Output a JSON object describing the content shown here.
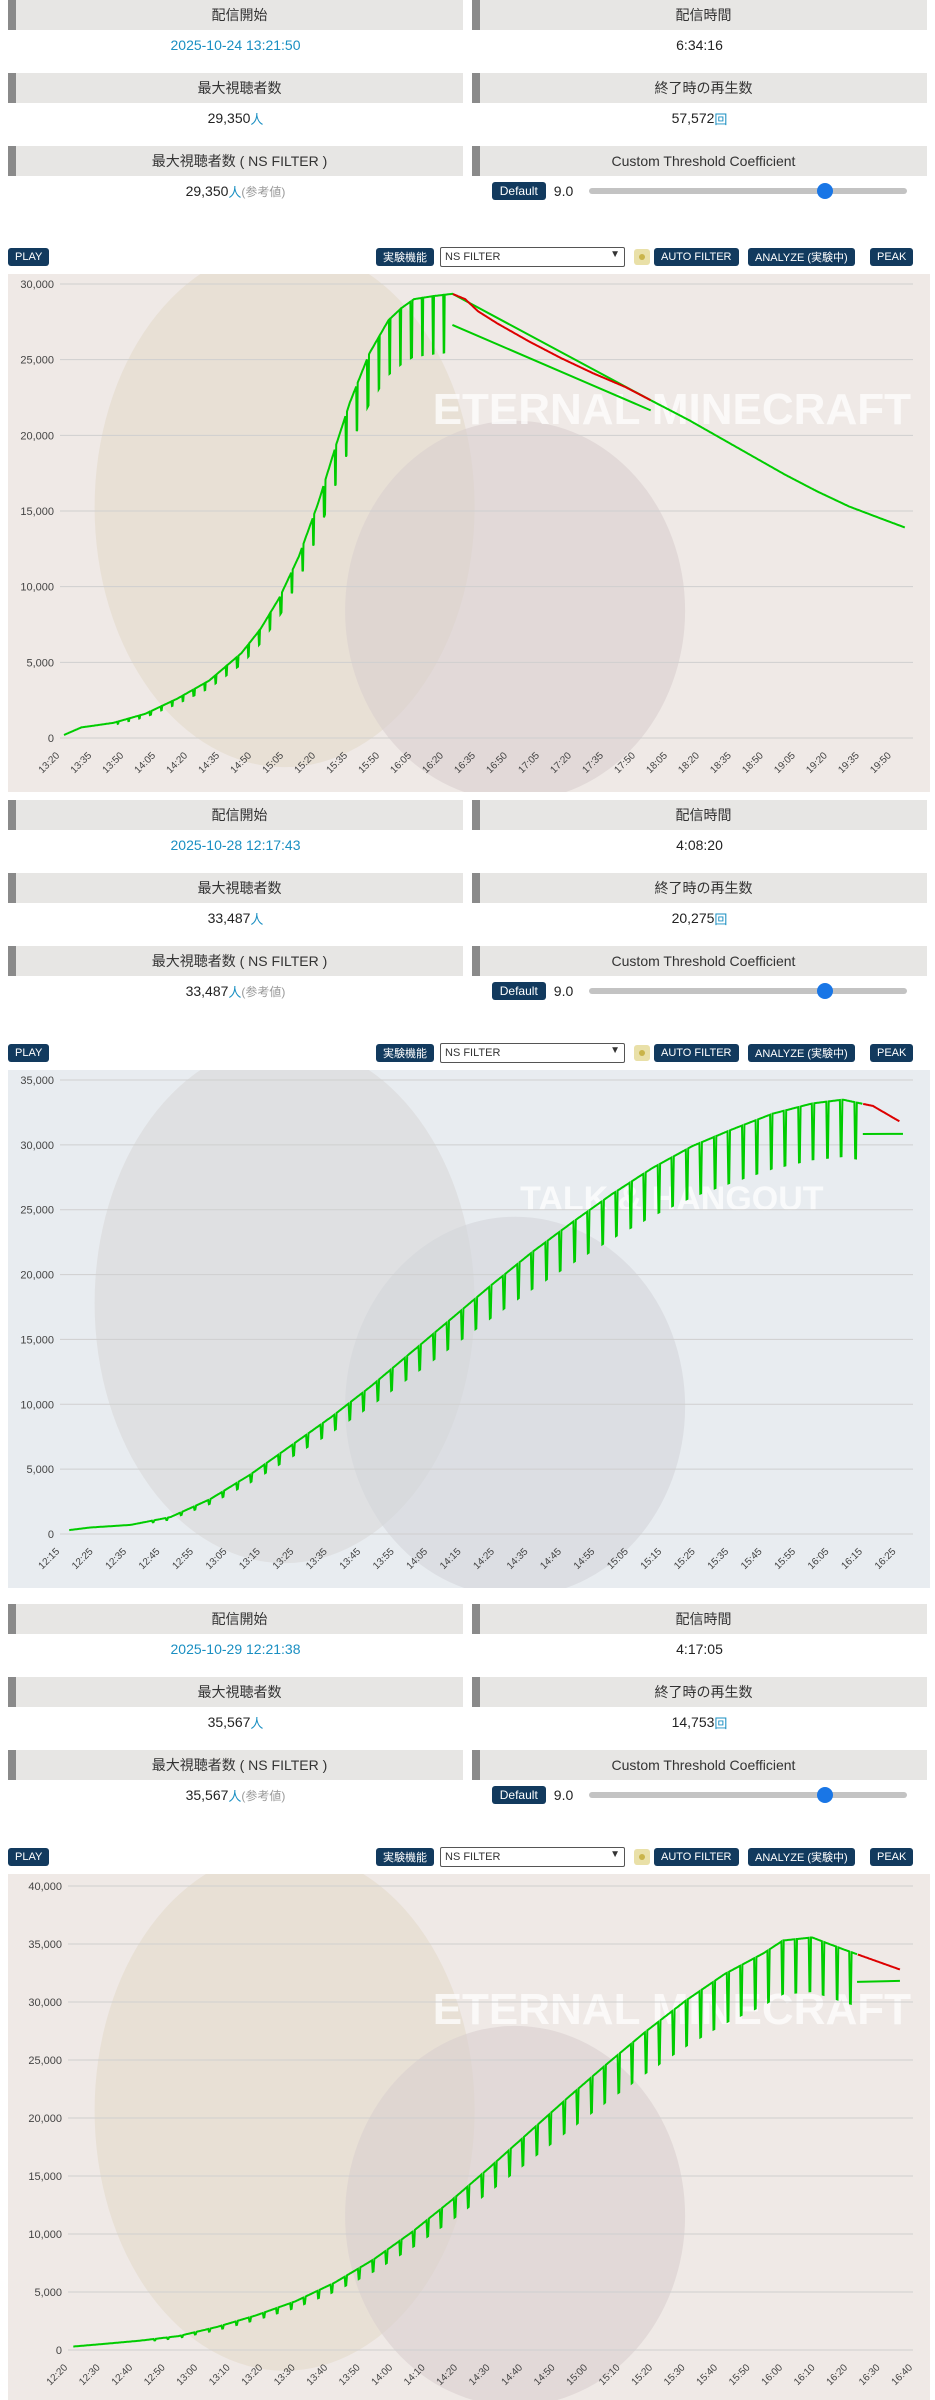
{
  "sections": [
    {
      "stats": {
        "start_label": "配信開始",
        "start_value": "2025-10-24 13:21:50",
        "duration_label": "配信時間",
        "duration_value": "6:34:16",
        "max_label": "最大視聴者数",
        "max_value": "29,350",
        "max_unit": "人",
        "views_label": "終了時の再生数",
        "views_value": "57,572",
        "views_unit": "回",
        "nsmax_label": "最大視聴者数 ( NS FILTER )",
        "nsmax_value": "29,350",
        "nsmax_unit": "人",
        "nsmax_note": "(参考値)",
        "coef_label": "Custom Threshold Coefficient",
        "default_label": "Default",
        "coef_value": "9.0",
        "slider_level": 0.74
      },
      "toolbar": {
        "play_label": "PLAY",
        "exp_label": "実験機能",
        "select_value": "NS FILTER",
        "auto_filter_label": "AUTO FILTER",
        "analyze_label": "ANALYZE (実験中)",
        "peak_label": "PEAK"
      },
      "chart_data": {
        "type": "line",
        "background_text": "ETERNAL MINECRAFT",
        "ylim": [
          0,
          30000
        ],
        "yticks": [
          "0",
          "5,000",
          "10,000",
          "15,000",
          "20,000",
          "25,000",
          "30,000"
        ],
        "xticks": [
          "13:20",
          "13:35",
          "13:50",
          "14:05",
          "14:20",
          "14:35",
          "14:50",
          "15:05",
          "15:20",
          "15:35",
          "15:50",
          "16:05",
          "16:20",
          "16:35",
          "16:50",
          "17:05",
          "17:20",
          "17:35",
          "17:50",
          "18:05",
          "18:20",
          "18:35",
          "18:50",
          "19:05",
          "19:20",
          "19:35",
          "19:50"
        ],
        "series_color": "#00cc00",
        "filtered_color": "#dd0000",
        "points_hour": [
          13.364,
          13.5,
          13.75,
          14.0,
          14.25,
          14.5,
          14.75,
          14.9,
          15.05,
          15.2,
          15.35,
          15.5,
          15.6,
          15.75,
          15.9,
          16.0,
          16.1,
          16.25,
          16.4,
          16.5,
          16.6,
          16.75,
          17.0,
          17.25,
          17.5,
          17.75,
          18.0,
          18.25,
          18.5,
          18.75,
          19.0,
          19.25,
          19.5,
          19.75,
          19.94
        ],
        "points_value": [
          200,
          700,
          1000,
          1600,
          2600,
          3800,
          5600,
          7200,
          9300,
          12000,
          15500,
          19600,
          22200,
          25400,
          27600,
          28400,
          29000,
          29200,
          29350,
          29000,
          28200,
          27400,
          26200,
          25100,
          24100,
          23200,
          22100,
          21000,
          19800,
          18600,
          17400,
          16300,
          15300,
          14500,
          13900
        ],
        "filtered_range": [
          16.4,
          17.95
        ]
      }
    },
    {
      "stats": {
        "start_label": "配信開始",
        "start_value": "2025-10-28 12:17:43",
        "duration_label": "配信時間",
        "duration_value": "4:08:20",
        "max_label": "最大視聴者数",
        "max_value": "33,487",
        "max_unit": "人",
        "views_label": "終了時の再生数",
        "views_value": "20,275",
        "views_unit": "回",
        "nsmax_label": "最大視聴者数 ( NS FILTER )",
        "nsmax_value": "33,487",
        "nsmax_unit": "人",
        "nsmax_note": "(参考値)",
        "coef_label": "Custom Threshold Coefficient",
        "default_label": "Default",
        "coef_value": "9.0",
        "slider_level": 0.74
      },
      "toolbar": {
        "play_label": "PLAY",
        "exp_label": "実験機能",
        "select_value": "NS FILTER",
        "auto_filter_label": "AUTO FILTER",
        "analyze_label": "ANALYZE (実験中)",
        "peak_label": "PEAK"
      },
      "chart_data": {
        "type": "line",
        "background_text": "TALK & HANGOUT",
        "ylim": [
          0,
          35000
        ],
        "yticks": [
          "0",
          "5,000",
          "10,000",
          "15,000",
          "20,000",
          "25,000",
          "30,000",
          "35,000"
        ],
        "xticks": [
          "12:15",
          "12:25",
          "12:35",
          "12:45",
          "12:55",
          "13:05",
          "13:15",
          "13:25",
          "13:35",
          "13:45",
          "13:55",
          "14:05",
          "14:15",
          "14:25",
          "14:35",
          "14:45",
          "14:55",
          "15:05",
          "15:15",
          "15:25",
          "15:35",
          "15:45",
          "15:55",
          "16:05",
          "16:15",
          "16:25"
        ],
        "series_color": "#00cc00",
        "filtered_color": "#dd0000",
        "points_hour": [
          12.296,
          12.4,
          12.6,
          12.8,
          13.0,
          13.2,
          13.4,
          13.6,
          13.8,
          14.0,
          14.2,
          14.4,
          14.6,
          14.8,
          15.0,
          15.2,
          15.4,
          15.6,
          15.8,
          16.0,
          16.15,
          16.3,
          16.434
        ],
        "points_value": [
          300,
          500,
          700,
          1300,
          2700,
          4600,
          6800,
          9000,
          11400,
          14000,
          16600,
          19200,
          21700,
          24000,
          26200,
          28200,
          29900,
          31200,
          32400,
          33200,
          33487,
          33000,
          31800
        ],
        "filtered_range": [
          16.25,
          16.45
        ]
      }
    },
    {
      "stats": {
        "start_label": "配信開始",
        "start_value": "2025-10-29 12:21:38",
        "duration_label": "配信時間",
        "duration_value": "4:17:05",
        "max_label": "最大視聴者数",
        "max_value": "35,567",
        "max_unit": "人",
        "views_label": "終了時の再生数",
        "views_value": "14,753",
        "views_unit": "回",
        "nsmax_label": "最大視聴者数 ( NS FILTER )",
        "nsmax_value": "35,567",
        "nsmax_unit": "人",
        "nsmax_note": "(参考値)",
        "coef_label": "Custom Threshold Coefficient",
        "default_label": "Default",
        "coef_value": "9.0",
        "slider_level": 0.74
      },
      "toolbar": {
        "play_label": "PLAY",
        "exp_label": "実験機能",
        "select_value": "NS FILTER",
        "auto_filter_label": "AUTO FILTER",
        "analyze_label": "ANALYZE (実験中)",
        "peak_label": "PEAK"
      },
      "chart_data": {
        "type": "line",
        "background_text": "ETERNAL MINECRAFT",
        "ylim": [
          0,
          40000
        ],
        "yticks": [
          "0",
          "5,000",
          "10,000",
          "15,000",
          "20,000",
          "25,000",
          "30,000",
          "35,000",
          "40,000"
        ],
        "xticks": [
          "12:20",
          "12:30",
          "12:40",
          "12:50",
          "13:00",
          "13:10",
          "13:20",
          "13:30",
          "13:40",
          "13:50",
          "14:00",
          "14:10",
          "14:20",
          "14:30",
          "14:40",
          "14:50",
          "15:00",
          "15:10",
          "15:20",
          "15:30",
          "15:40",
          "15:50",
          "16:00",
          "16:10",
          "16:20",
          "16:30",
          "16:40"
        ],
        "series_color": "#00cc00",
        "filtered_color": "#dd0000",
        "points_hour": [
          12.36,
          12.5,
          12.7,
          12.9,
          13.1,
          13.3,
          13.5,
          13.7,
          13.9,
          14.1,
          14.3,
          14.5,
          14.7,
          14.9,
          15.1,
          15.3,
          15.5,
          15.7,
          15.9,
          16.0,
          16.15,
          16.3,
          16.45,
          16.6
        ],
        "points_value": [
          300,
          500,
          800,
          1200,
          2000,
          3000,
          4200,
          5800,
          7800,
          10200,
          12900,
          15800,
          18800,
          21800,
          24700,
          27500,
          30100,
          32400,
          34200,
          35300,
          35567,
          34600,
          33700,
          32800
        ],
        "filtered_range": [
          16.38,
          16.6
        ]
      }
    }
  ]
}
